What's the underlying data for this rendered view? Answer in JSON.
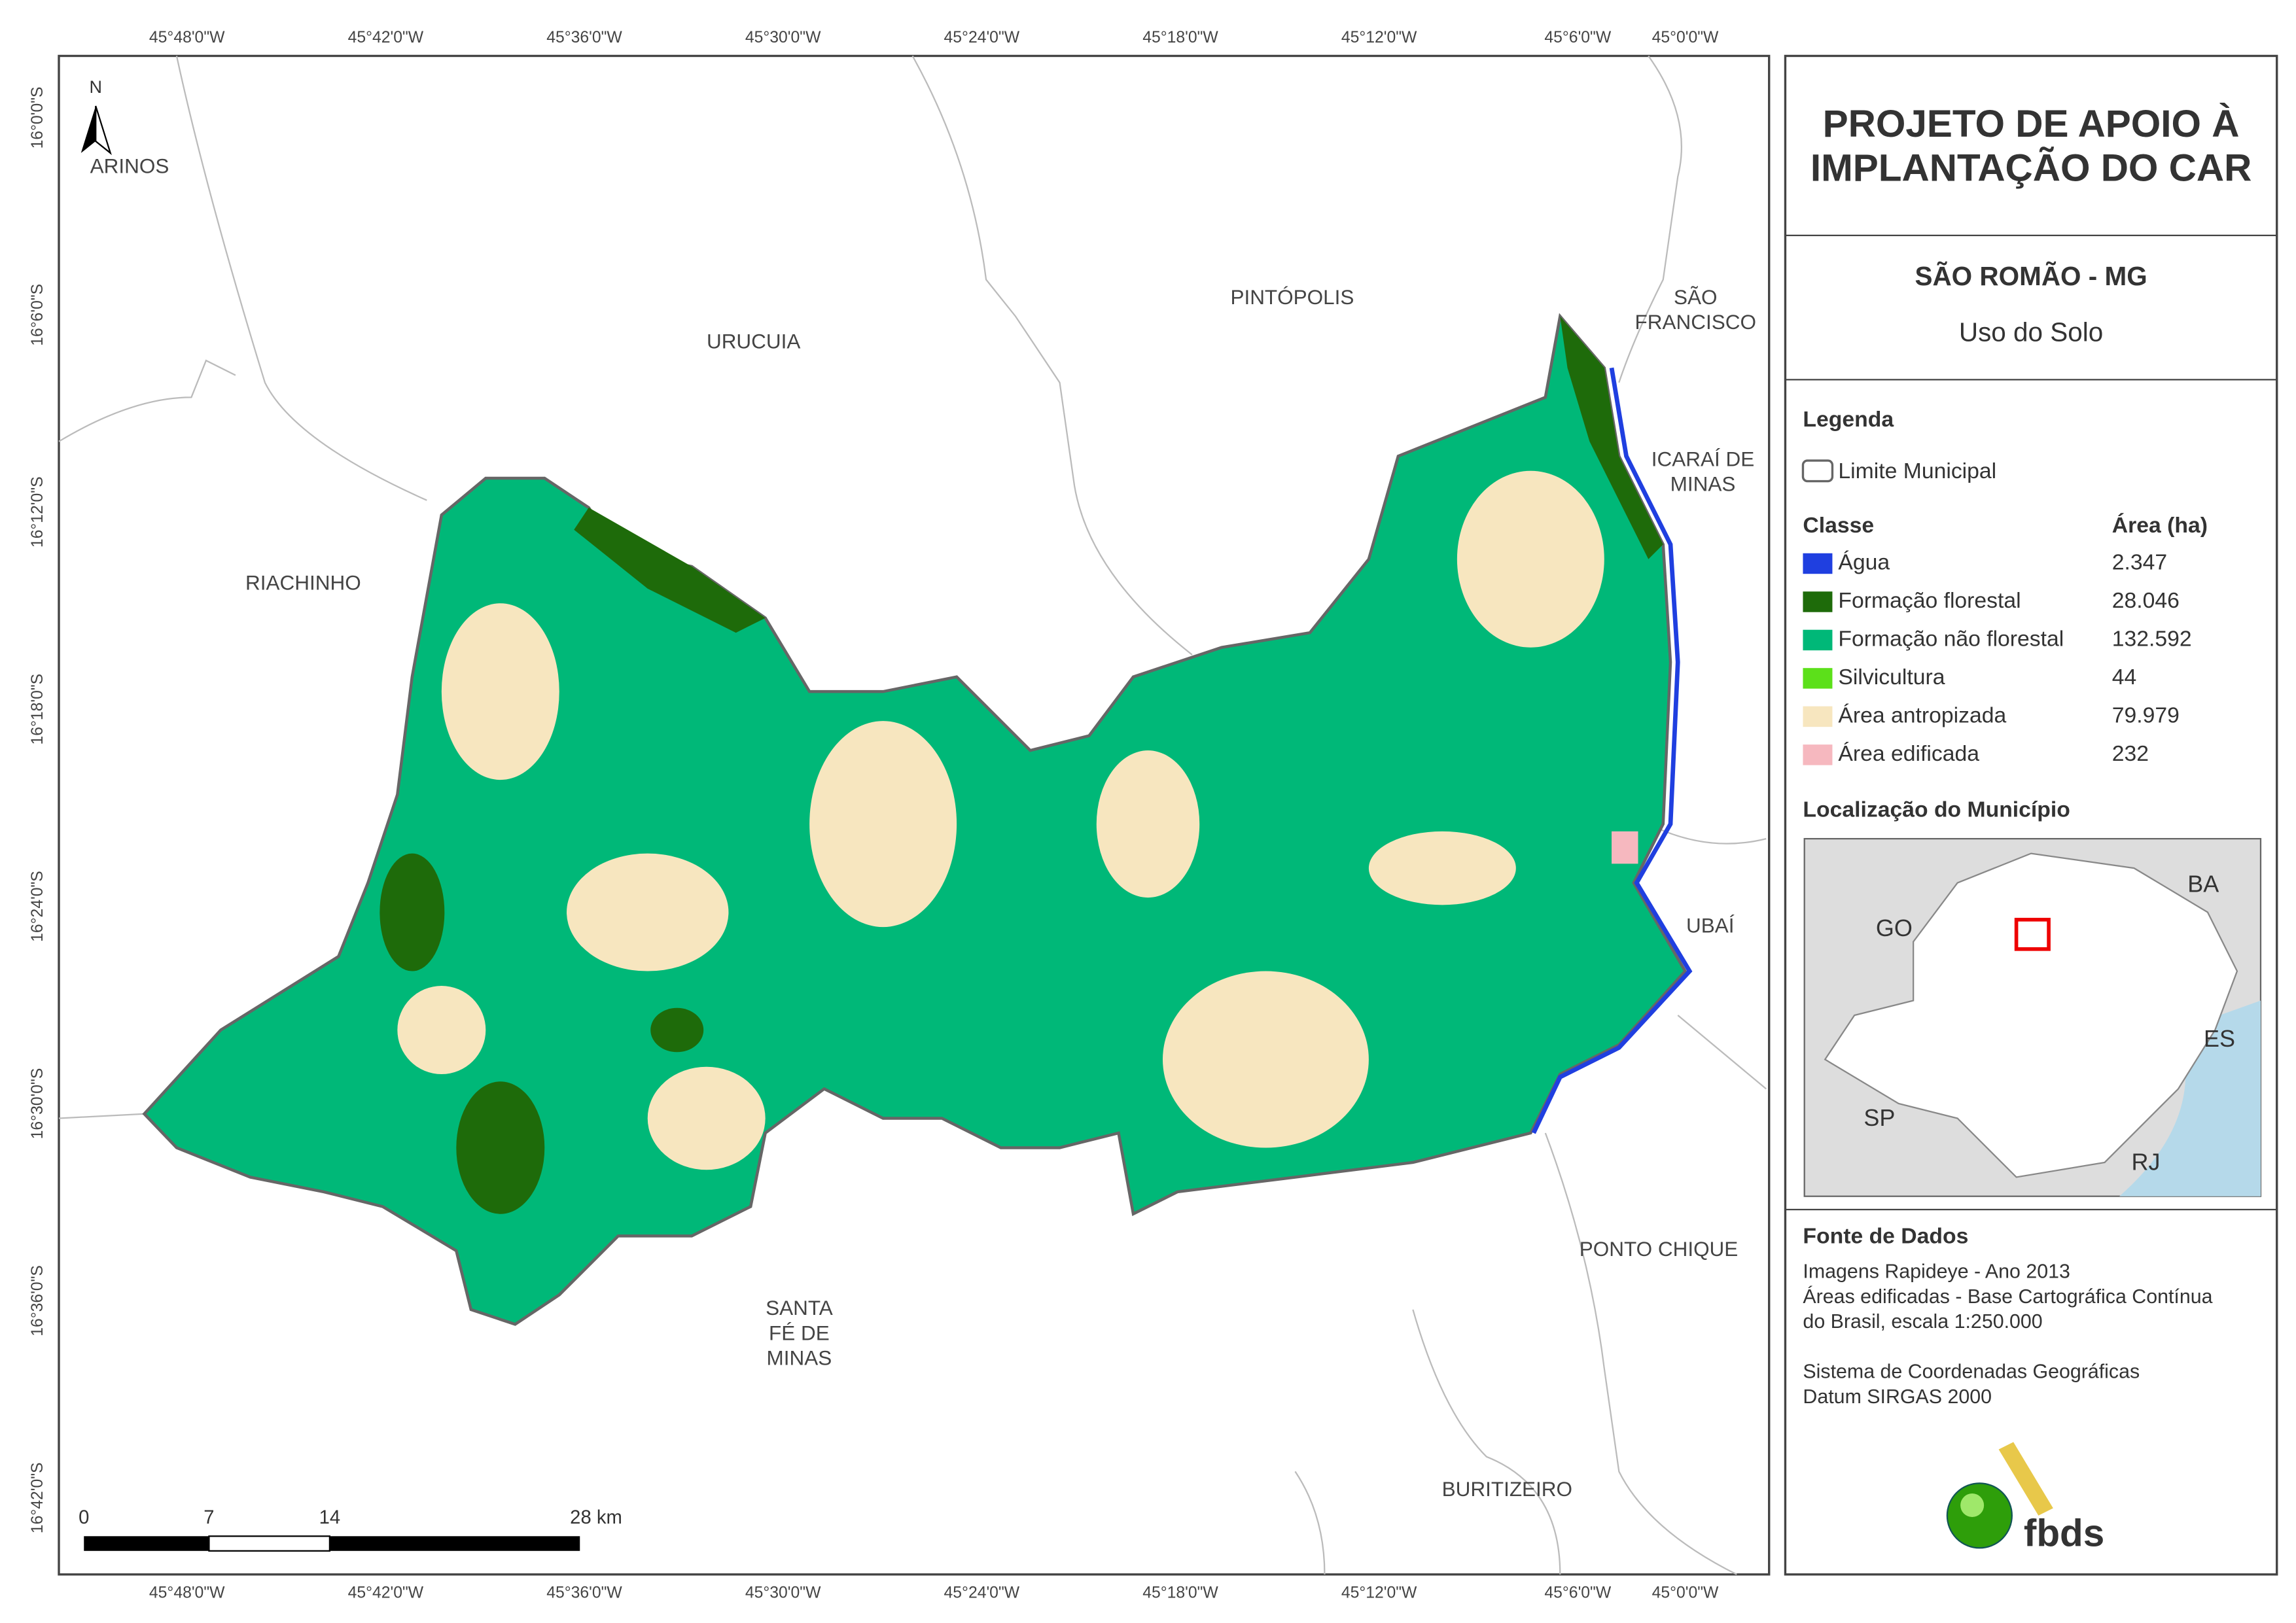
{
  "header": {
    "title": [
      "PROJETO DE APOIO À",
      "IMPLANTAÇÃO DO CAR"
    ],
    "subtitle": "SÃO ROMÃO - MG",
    "theme": "Uso do Solo"
  },
  "legend": {
    "title": "Legenda",
    "boundary": "Limite Municipal",
    "class_header": "Classe",
    "area_header": "Área (ha)",
    "classes": [
      {
        "name": "Água",
        "color": "#1f3fe0",
        "area": "2.347"
      },
      {
        "name": "Formação florestal",
        "color": "#1e6b0a",
        "area": "28.046"
      },
      {
        "name": "Formação não florestal",
        "color": "#00b878",
        "area": "132.592"
      },
      {
        "name": "Silvicultura",
        "color": "#5ce01a",
        "area": "44"
      },
      {
        "name": "Área antropizada",
        "color": "#f7e6bf",
        "area": "79.979"
      },
      {
        "name": "Área edificada",
        "color": "#f6b8bf",
        "area": "232"
      }
    ]
  },
  "location": {
    "title": "Localização do Município",
    "states": [
      "GO",
      "BA",
      "ES",
      "SP",
      "RJ"
    ]
  },
  "sources": {
    "title": "Fonte de Dados",
    "lines": [
      "Imagens Rapideye - Ano 2013",
      "Áreas edificadas - Base Cartográfica Contínua",
      "do Brasil, escala 1:250.000",
      "",
      "Sistema de Coordenadas Geográficas",
      "Datum SIRGAS 2000"
    ]
  },
  "logo": "fbds",
  "map": {
    "north": "N",
    "municipalities": [
      [
        "ARINOS"
      ],
      [
        "URUCUIA"
      ],
      [
        "PINTÓPOLIS"
      ],
      [
        "SÃO",
        "FRANCISCO"
      ],
      [
        "ICARAÍ DE",
        "MINAS"
      ],
      [
        "RIACHINHO"
      ],
      [
        "UBAÍ"
      ],
      [
        "PONTO CHIQUE"
      ],
      [
        "SANTA",
        "FÉ DE",
        "MINAS"
      ],
      [
        "BURITIZEIRO"
      ]
    ],
    "longitudes": [
      "45°48'0\"W",
      "45°42'0\"W",
      "45°36'0\"W",
      "45°30'0\"W",
      "45°24'0\"W",
      "45°18'0\"W",
      "45°12'0\"W",
      "45°6'0\"W",
      "45°0'0\"W"
    ],
    "latitudes": [
      "16°0'0\"S",
      "16°6'0\"S",
      "16°12'0\"S",
      "16°18'0\"S",
      "16°24'0\"S",
      "16°30'0\"S",
      "16°36'0\"S",
      "16°42'0\"S"
    ],
    "scale": [
      "0",
      "7",
      "14",
      "28 km"
    ]
  }
}
